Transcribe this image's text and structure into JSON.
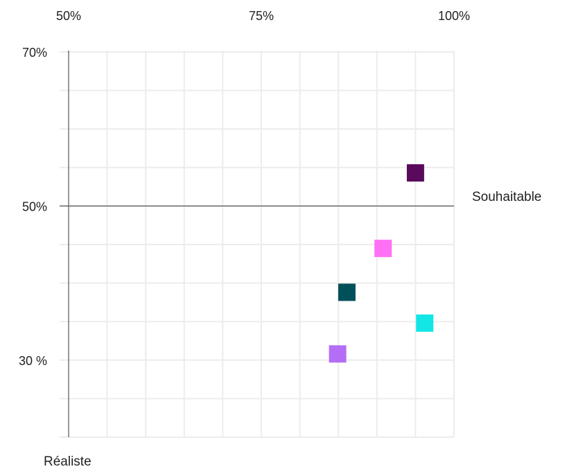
{
  "chart_data": {
    "type": "scatter",
    "title": "",
    "xlabel": "Souhaitable",
    "ylabel": "Réaliste",
    "xlim": [
      50,
      100
    ],
    "ylim": [
      20,
      70
    ],
    "x_ticks": [
      {
        "value": 50,
        "label": "50%"
      },
      {
        "value": 75,
        "label": "75%"
      },
      {
        "value": 100,
        "label": "100%"
      }
    ],
    "y_ticks": [
      {
        "value": 70,
        "label": "70%"
      },
      {
        "value": 50,
        "label": "50%"
      },
      {
        "value": 30,
        "label": "30 %"
      }
    ],
    "grid": true,
    "reference_lines": {
      "x": 50,
      "y": 50
    },
    "marker": "square",
    "points": [
      {
        "x": 95.0,
        "y": 54.3,
        "color": "#5a0a5c"
      },
      {
        "x": 90.8,
        "y": 44.5,
        "color": "#ff70f5"
      },
      {
        "x": 86.1,
        "y": 38.8,
        "color": "#00505a"
      },
      {
        "x": 96.2,
        "y": 34.8,
        "color": "#14e6e6"
      },
      {
        "x": 84.9,
        "y": 30.8,
        "color": "#b46ef5"
      }
    ]
  }
}
